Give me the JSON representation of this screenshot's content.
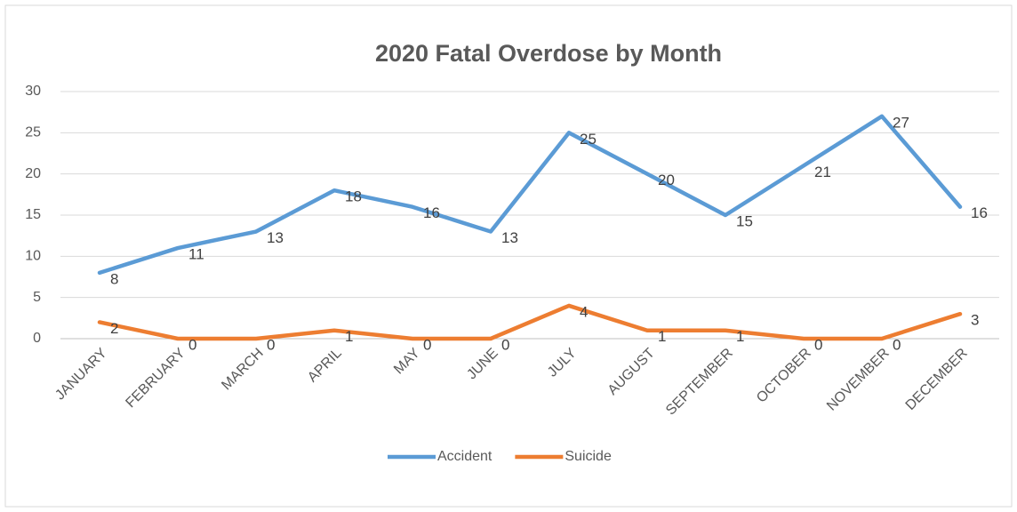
{
  "chart_data": {
    "type": "line",
    "title": "2020 Fatal Overdose by Month",
    "categories": [
      "JANUARY",
      "FEBRUARY",
      "MARCH",
      "APRIL",
      "MAY",
      "JUNE",
      "JULY",
      "AUGUST",
      "SEPTEMBER",
      "OCTOBER",
      "NOVEMBER",
      "DECEMBER"
    ],
    "series": [
      {
        "name": "Accident",
        "color": "#5b9bd5",
        "values": [
          8,
          11,
          13,
          18,
          16,
          13,
          25,
          20,
          15,
          21,
          27,
          16
        ]
      },
      {
        "name": "Suicide",
        "color": "#ed7d31",
        "values": [
          2,
          0,
          0,
          1,
          0,
          0,
          4,
          1,
          1,
          0,
          0,
          3
        ]
      }
    ],
    "ylim": [
      0,
      30
    ],
    "yticks": [
      0,
      5,
      10,
      15,
      20,
      25,
      30
    ],
    "grid": true,
    "legend": "bottom"
  }
}
